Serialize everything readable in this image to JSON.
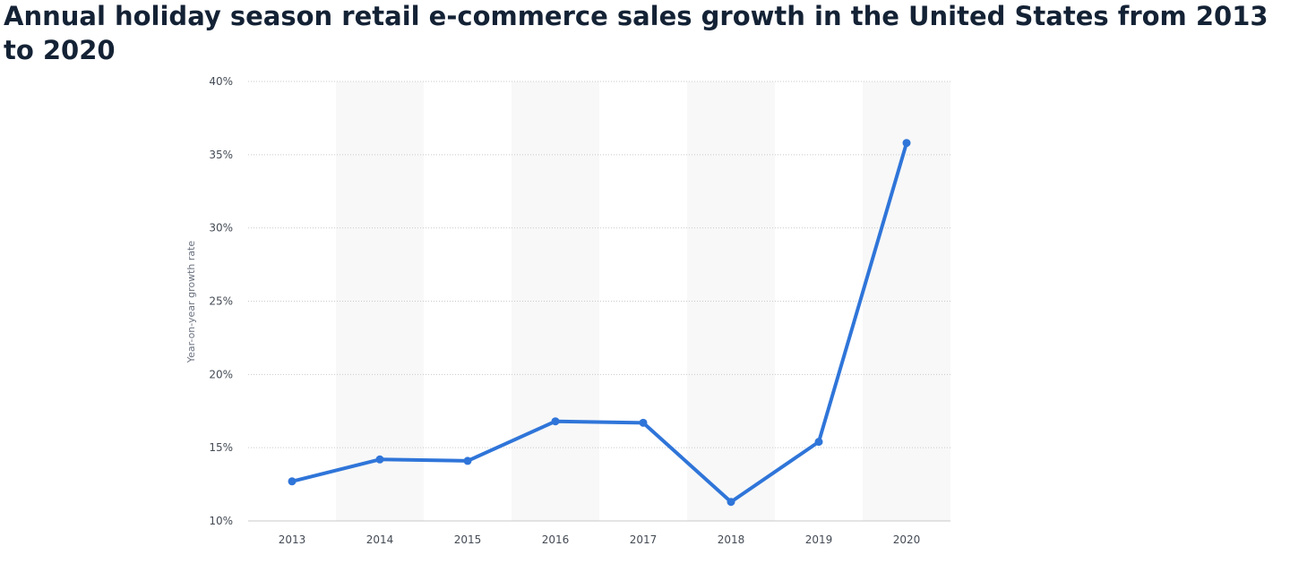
{
  "page": {
    "title": "Annual holiday season retail e-commerce sales growth in the United States from 2013 to 2020"
  },
  "chart_data": {
    "type": "line",
    "title": "Annual holiday season retail e-commerce sales growth in the United States from 2013 to 2020",
    "xlabel": "",
    "ylabel": "Year-on-year growth rate",
    "categories": [
      "2013",
      "2014",
      "2015",
      "2016",
      "2017",
      "2018",
      "2019",
      "2020"
    ],
    "series": [
      {
        "values": [
          12.7,
          14.2,
          14.1,
          16.8,
          16.7,
          11.3,
          15.4,
          35.8
        ]
      }
    ],
    "ylim": [
      10,
      40
    ],
    "yticks": [
      10,
      15,
      20,
      25,
      30,
      35,
      40
    ],
    "ytick_labels": [
      "10%",
      "15%",
      "20%",
      "25%",
      "30%",
      "35%",
      "40%"
    ],
    "grid": true,
    "alternating_column_shading": true,
    "colors": {
      "line": "#2f75d9",
      "band": "#f8f8f8",
      "grid": "#c9c9c9"
    }
  }
}
